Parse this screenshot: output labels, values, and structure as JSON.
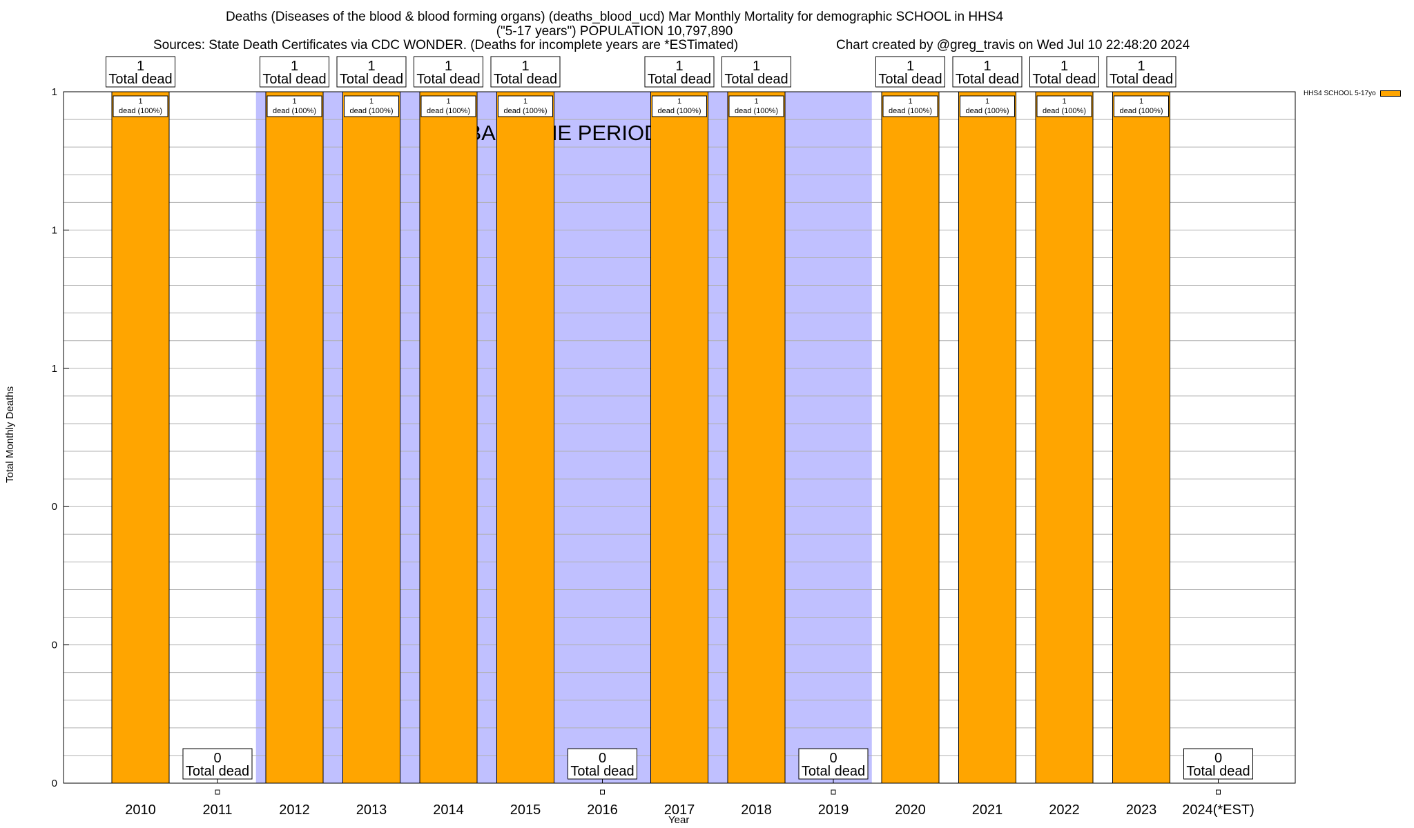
{
  "header": {
    "title_line1": "Deaths (Diseases of the blood & blood forming organs) (deaths_blood_ucd) Mar Monthly Mortality for demographic SCHOOL in HHS4",
    "title_line2": "(\"5-17 years\") POPULATION 10,797,890",
    "sources": "Sources: State Death Certificates via CDC WONDER. (Deaths for incomplete years are *ESTimated)",
    "credit": "Chart created by @greg_travis on Wed Jul 10 22:48:20 2024"
  },
  "chart_data": {
    "type": "bar",
    "xlabel": "Year",
    "ylabel": "Total Monthly Deaths",
    "ylim": [
      0,
      1
    ],
    "y_tick_labels": [
      "0",
      "0",
      "0",
      "1",
      "1",
      "1"
    ],
    "categories": [
      "2010",
      "2011",
      "2012",
      "2013",
      "2014",
      "2015",
      "2016",
      "2017",
      "2018",
      "2019",
      "2020",
      "2021",
      "2022",
      "2023",
      "2024(*EST)"
    ],
    "series": [
      {
        "name": "HHS4 SCHOOL 5-17yo",
        "color": "#ffa500",
        "values": [
          1,
          0,
          1,
          1,
          1,
          1,
          0,
          1,
          1,
          0,
          1,
          1,
          1,
          1,
          0
        ]
      }
    ],
    "top_label_suffix": "Total dead",
    "inner_label_text": "dead (100%)",
    "baseline_period": {
      "label": "BASELINE PERIOD",
      "years": [
        "2012",
        "2013",
        "2014",
        "2015",
        "2016",
        "2017",
        "2018",
        "2019"
      ],
      "color": "#c0c0ff"
    },
    "grid": true,
    "legend_position": "top-right"
  }
}
